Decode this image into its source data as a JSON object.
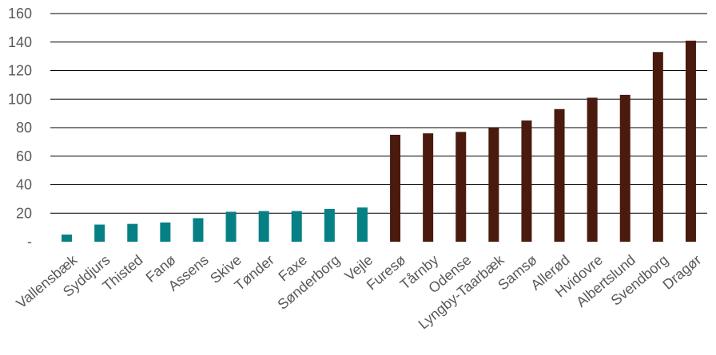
{
  "chart_data": {
    "type": "bar",
    "title": "",
    "xlabel": "",
    "ylabel": "",
    "ylim": [
      0,
      160
    ],
    "y_ticks": [
      0,
      20,
      40,
      60,
      80,
      100,
      120,
      140,
      160
    ],
    "y_tick_labels": [
      "-",
      "20",
      "40",
      "60",
      "80",
      "100",
      "120",
      "140",
      "160"
    ],
    "grid": true,
    "legend": "none",
    "categories": [
      "Vallensbæk",
      "Syddjurs",
      "Thisted",
      "Fanø",
      "Assens",
      "Skive",
      "Tønder",
      "Faxe",
      "Sønderborg",
      "Vejle",
      "Furesø",
      "Tårnby",
      "Odense",
      "Lyngby-Taarbæk",
      "Samsø",
      "Allerød",
      "Hvidovre",
      "Albertslund",
      "Svendborg",
      "Dragør"
    ],
    "values": [
      5,
      12,
      12.5,
      13.5,
      16.5,
      21,
      21.5,
      21.5,
      23,
      24,
      75,
      76,
      77,
      80,
      85,
      93,
      101,
      103,
      133,
      141
    ],
    "colors": [
      "#068084",
      "#068084",
      "#068084",
      "#068084",
      "#068084",
      "#068084",
      "#068084",
      "#068084",
      "#068084",
      "#068084",
      "#4A1A0E",
      "#4A1A0E",
      "#4A1A0E",
      "#4A1A0E",
      "#4A1A0E",
      "#4A1A0E",
      "#4A1A0E",
      "#4A1A0E",
      "#4A1A0E",
      "#4A1A0E"
    ]
  }
}
